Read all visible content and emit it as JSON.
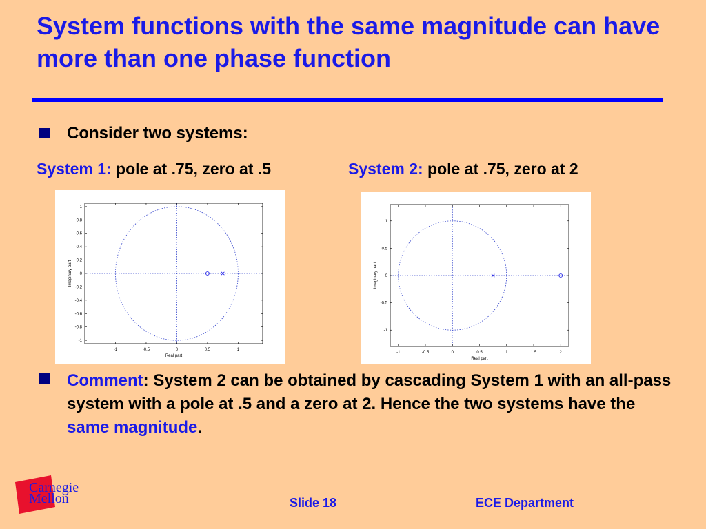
{
  "title": "System functions with the same magnitude can have more than one phase function",
  "bullet1": "Consider two systems:",
  "system1": {
    "label": "System 1:",
    "desc": " pole at .75, zero at .5"
  },
  "system2": {
    "label": "System 2:",
    "desc": " pole at .75, zero at 2"
  },
  "comment": {
    "label": "Comment",
    "part1": ": System 2 can be obtained by cascading System 1 with an all-pass system with a pole at .5 and a zero at 2.  Hence the two systems have the ",
    "highlight": "same magnitude",
    "part2": "."
  },
  "logo": {
    "line1": "Carnegie",
    "line2": "Mellon"
  },
  "footer": {
    "slide": "Slide 18",
    "dept": "ECE Department"
  },
  "chart_data": [
    {
      "type": "scatter",
      "xlabel": "Real part",
      "ylabel": "Imaginary part",
      "xlim": [
        -1.5,
        1.4
      ],
      "ylim": [
        -1.05,
        1.05
      ],
      "xticks": [
        -1,
        -0.5,
        0,
        0.5,
        1
      ],
      "xtick_labels": [
        "-1",
        "-0.5",
        "0",
        "0.5",
        "1"
      ],
      "yticks": [
        1,
        0.8,
        0.6,
        0.4,
        0.2,
        0,
        -0.2,
        -0.4,
        -0.6,
        -0.8,
        -1
      ],
      "ytick_labels": [
        "1",
        "0.8",
        "0.6",
        "0.4",
        "0.2",
        "0",
        "-0.2",
        "-0.4",
        "-0.6",
        "-0.8",
        "-1"
      ],
      "unit_circle": true,
      "zeros": [
        [
          0.5,
          0
        ]
      ],
      "poles": [
        [
          0.75,
          0
        ]
      ]
    },
    {
      "type": "scatter",
      "xlabel": "Real part",
      "ylabel": "Imaginary part",
      "xlim": [
        -1.15,
        2.15
      ],
      "ylim": [
        -1.3,
        1.3
      ],
      "xticks": [
        -1,
        -0.5,
        0,
        0.5,
        1,
        1.5,
        2
      ],
      "xtick_labels": [
        "-1",
        "-0.5",
        "0",
        "0.5",
        "1",
        "1.5",
        "2"
      ],
      "yticks": [
        1,
        0.5,
        0,
        -0.5,
        -1
      ],
      "ytick_labels": [
        "1",
        "0.5",
        "0",
        "-0.5",
        "-1"
      ],
      "unit_circle": true,
      "zeros": [
        [
          2,
          0
        ]
      ],
      "poles": [
        [
          0.75,
          0
        ]
      ]
    }
  ]
}
